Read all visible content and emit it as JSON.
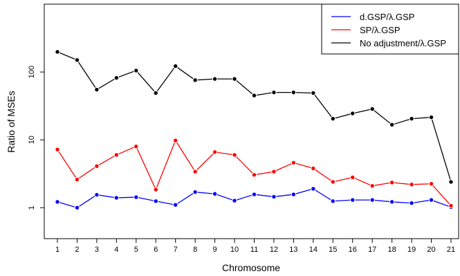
{
  "chart_data": {
    "type": "line",
    "title": "",
    "xlabel": "Chromosome",
    "ylabel": "Ratio of MSEs",
    "y_scale": "log",
    "ylim": [
      0.35,
      1000
    ],
    "y_ticks": [
      1,
      10,
      100
    ],
    "y_tick_labels": [
      "1",
      "10",
      "100"
    ],
    "categories": [
      "1",
      "2",
      "3",
      "4",
      "5",
      "6",
      "7",
      "8",
      "9",
      "10",
      "11",
      "12",
      "13",
      "14",
      "15",
      "16",
      "17",
      "18",
      "19",
      "20",
      "21"
    ],
    "grid": false,
    "legend_position": "top-right",
    "series": [
      {
        "name": "d.GSP/λ.GSP",
        "color": "#0000ff",
        "values": [
          1.22,
          1.0,
          1.55,
          1.4,
          1.43,
          1.25,
          1.1,
          1.7,
          1.6,
          1.27,
          1.57,
          1.45,
          1.57,
          1.9,
          1.25,
          1.3,
          1.3,
          1.22,
          1.17,
          1.3,
          1.02
        ]
      },
      {
        "name": "SP/λ.GSP",
        "color": "#ff0000",
        "values": [
          7.2,
          2.6,
          4.1,
          6.0,
          8.0,
          1.85,
          9.8,
          3.4,
          6.6,
          6.0,
          3.05,
          3.4,
          4.6,
          3.8,
          2.4,
          2.8,
          2.1,
          2.35,
          2.2,
          2.25,
          1.07
        ]
      },
      {
        "name": "No adjustment/λ.GSP",
        "color": "#000000",
        "values": [
          198,
          150,
          55,
          82,
          105,
          49,
          122,
          76,
          79,
          79,
          45,
          50,
          50,
          49,
          20.5,
          24.5,
          28.5,
          16.7,
          20.5,
          21.5,
          2.4
        ]
      }
    ]
  }
}
